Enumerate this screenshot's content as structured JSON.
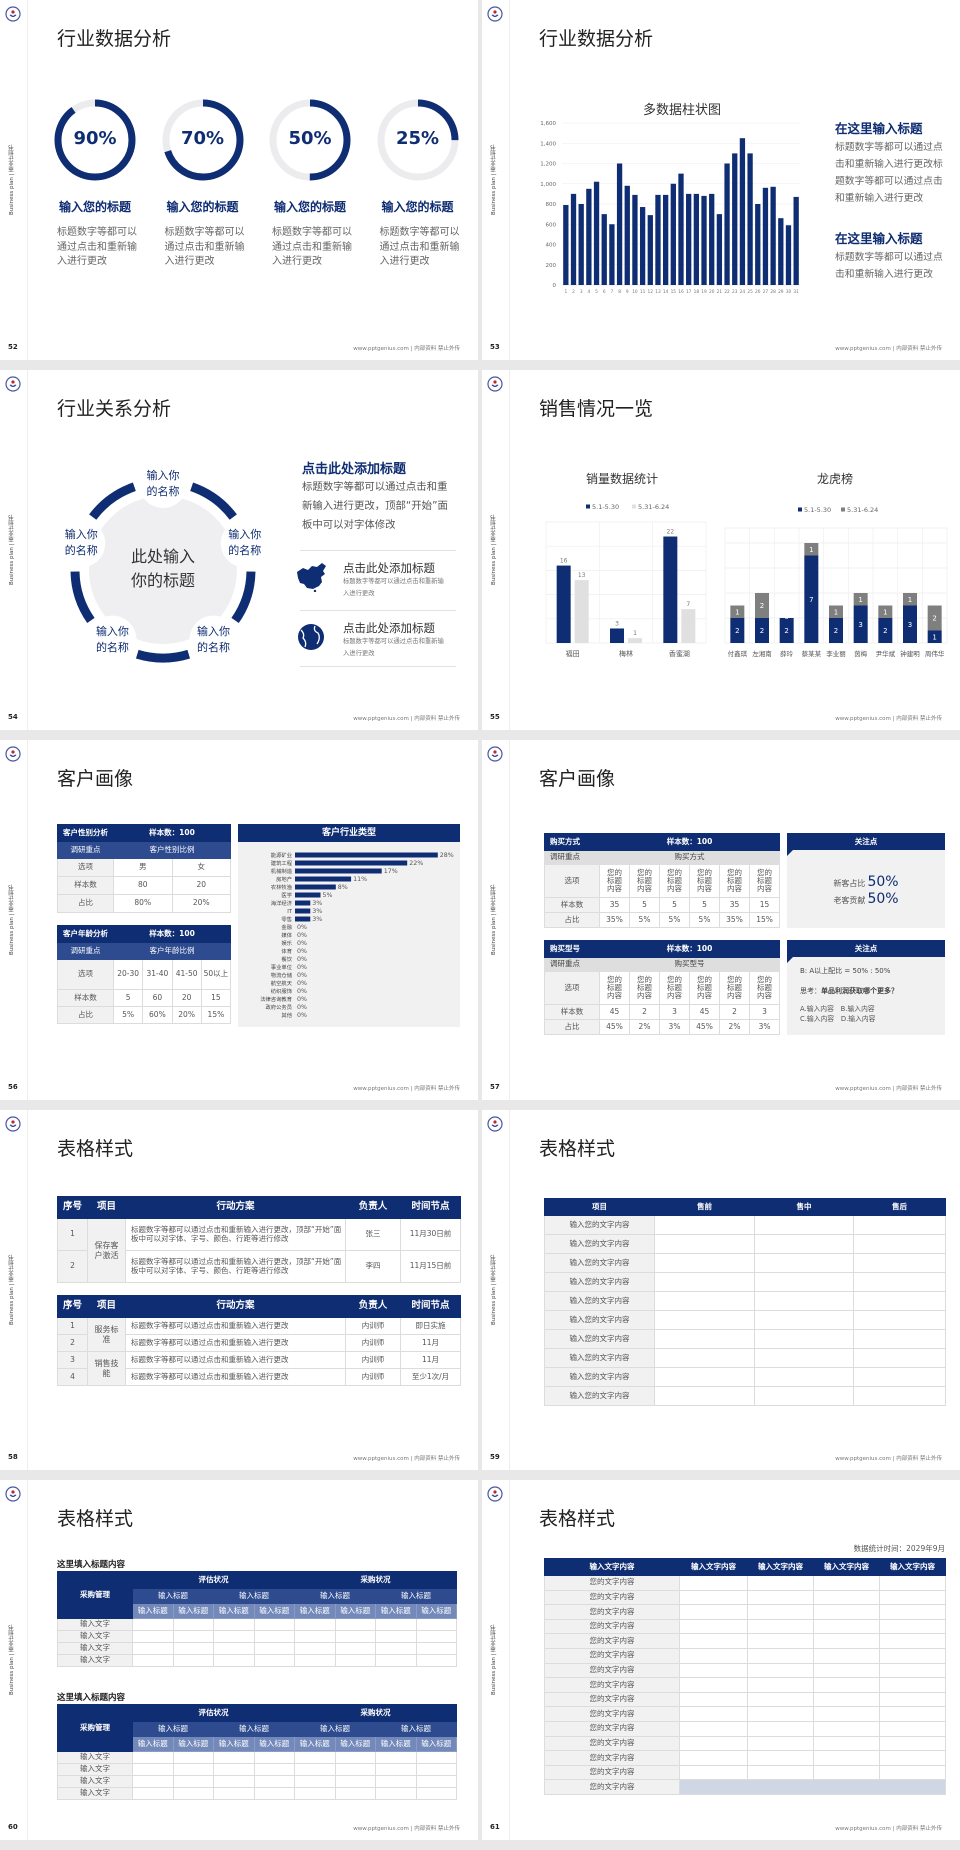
{
  "common": {
    "side_label": "Business plan | 商业计划书",
    "footer": "www.pptgenius.com | 内部资料 禁止外传",
    "accent": "#0f2d72",
    "logo_icon": "emblem-logo"
  },
  "slides": [
    {
      "page": "52",
      "title": "行业数据分析",
      "gauges": [
        {
          "value": 90,
          "label": "90%",
          "heading": "输入您的标题",
          "desc": "标题数字等都可以通过点击和重新输入进行更改"
        },
        {
          "value": 70,
          "label": "70%",
          "heading": "输入您的标题",
          "desc": "标题数字等都可以通过点击和重新输入进行更改"
        },
        {
          "value": 50,
          "label": "50%",
          "heading": "输入您的标题",
          "desc": "标题数字等都可以通过点击和重新输入进行更改"
        },
        {
          "value": 25,
          "label": "25%",
          "heading": "输入您的标题",
          "desc": "标题数字等都可以通过点击和重新输入进行更改"
        }
      ]
    },
    {
      "page": "53",
      "title": "行业数据分析",
      "blocks": [
        {
          "heading": "在这里输入标题",
          "body": "标题数字等都可以通过点击和重新输入进行更改标题数字等都可以通过点击和重新输入进行更改"
        },
        {
          "heading": "在这里输入标题",
          "body": "标题数字等都可以通过点击和重新输入进行更改"
        }
      ]
    },
    {
      "page": "54",
      "title": "行业关系分析",
      "center": "此处输入你的标题",
      "nodes": [
        "输入你的名称",
        "输入你的名称",
        "输入你的名称",
        "输入你的名称",
        "输入你的名称"
      ],
      "heading": "点击此处添加标题",
      "body": "标题数字等都可以通过点击和重新输入进行更改，顶部“开始”面板中可以对字体修改",
      "items": [
        {
          "icon": "china-map-icon",
          "title": "点击此处添加标题",
          "desc": "标题数字等都可以通过点击和重新输入进行更改"
        },
        {
          "icon": "globe-icon",
          "title": "点击此处添加标题",
          "desc": "标题数字等都可以通过点击和重新输入进行更改"
        }
      ]
    },
    {
      "page": "55",
      "title": "销售情况一览"
    },
    {
      "page": "56",
      "title": "客户画像",
      "gender": {
        "title": "客户性别分析",
        "sample": "样本数：100",
        "focus_label": "调研重点",
        "focus_value": "客户性别比例",
        "rows": [
          [
            "选项",
            "男",
            "女"
          ],
          [
            "样本数",
            "80",
            "20"
          ],
          [
            "占比",
            "80%",
            "20%"
          ]
        ]
      },
      "age": {
        "title": "客户年龄分析",
        "sample": "样本数：100",
        "focus_label": "调研重点",
        "focus_value": "客户年龄比例",
        "rows": [
          [
            "选项",
            "20-30",
            "31-40",
            "41-50",
            "50以上"
          ],
          [
            "样本数",
            "5",
            "60",
            "20",
            "15"
          ],
          [
            "占比",
            "5%",
            "60%",
            "20%",
            "15%"
          ]
        ]
      },
      "industry_title": "客户行业类型"
    },
    {
      "page": "57",
      "title": "客户画像",
      "tables": [
        {
          "title": "购买方式",
          "sample": "样本数：100",
          "focus_label": "调研重点",
          "focus_value": "购买方式",
          "options_label": "选项",
          "options": [
            "您的标题内容",
            "您的标题内容",
            "您的标题内容",
            "您的标题内容",
            "您的标题内容",
            "您的标题内容"
          ],
          "rows": [
            {
              "label": "样本数",
              "values": [
                "35",
                "5",
                "5",
                "5",
                "35",
                "15"
              ]
            },
            {
              "label": "占比",
              "values": [
                "35%",
                "5%",
                "5%",
                "5%",
                "35%",
                "15%"
              ]
            }
          ]
        },
        {
          "title": "购买型号",
          "sample": "样本数：100",
          "focus_label": "调研重点",
          "focus_value": "购买型号",
          "options_label": "选项",
          "options": [
            "您的标题内容",
            "您的标题内容",
            "您的标题内容",
            "您的标题内容",
            "您的标题内容",
            "您的标题内容"
          ],
          "rows": [
            {
              "label": "样本数",
              "values": [
                "45",
                "2",
                "3",
                "45",
                "2",
                "3"
              ]
            },
            {
              "label": "占比",
              "values": [
                "45%",
                "2%",
                "3%",
                "45%",
                "2%",
                "3%"
              ]
            }
          ]
        }
      ],
      "panels": [
        {
          "title": "关注点",
          "stats": [
            {
              "label": "新客占比",
              "value": "50%"
            },
            {
              "label": "老客贡献",
              "value": "50%"
            }
          ]
        },
        {
          "title": "关注点",
          "ratio": "B: A以上配比 = 50% : 50%",
          "question_prefix": "思考：",
          "question": "单品利润获取哪个更多？",
          "options": [
            "A.输入内容　B.输入内容",
            "C.输入内容　D.输入内容"
          ]
        }
      ]
    },
    {
      "page": "58",
      "title": "表格样式",
      "headers": [
        "序号",
        "项目",
        "行动方案",
        "负责人",
        "时间节点"
      ],
      "table1": [
        {
          "item": "保存客户激活",
          "rows": [
            {
              "no": "1",
              "plan": "标题数字等都可以通过点击和重新输入进行更改，顶部“开始”面板中可以对字体、字号、颜色、行距等进行修改",
              "owner": "张三",
              "time": "11月30日前"
            },
            {
              "no": "2",
              "plan": "标题数字等都可以通过点击和重新输入进行更改，顶部“开始”面板中可以对字体、字号、颜色、行距等进行修改",
              "owner": "李四",
              "time": "11月15日前"
            }
          ]
        }
      ],
      "table2": [
        {
          "item": "服务标准",
          "rows": [
            {
              "no": "1",
              "plan": "标题数字等都可以通过点击和重新输入进行更改",
              "owner": "内训师",
              "time": "即日实施"
            },
            {
              "no": "2",
              "plan": "标题数字等都可以通过点击和重新输入进行更改",
              "owner": "内训师",
              "time": "11月"
            }
          ]
        },
        {
          "item": "销售技能",
          "rows": [
            {
              "no": "3",
              "plan": "标题数字等都可以通过点击和重新输入进行更改",
              "owner": "内训师",
              "time": "11月"
            },
            {
              "no": "4",
              "plan": "标题数字等都可以通过点击和重新输入进行更改",
              "owner": "内训师",
              "time": "至少1次/月"
            }
          ]
        }
      ]
    },
    {
      "page": "59",
      "title": "表格样式",
      "headers": [
        "项目",
        "售前",
        "售中",
        "售后"
      ],
      "rows": [
        "输入您的文字内容",
        "输入您的文字内容",
        "输入您的文字内容",
        "输入您的文字内容",
        "输入您的文字内容",
        "输入您的文字内容",
        "输入您的文字内容",
        "输入您的文字内容",
        "输入您的文字内容",
        "输入您的文字内容"
      ]
    },
    {
      "page": "60",
      "title": "表格样式",
      "blocks": [
        {
          "subtitle": "这里填入标题内容",
          "corner": "采购管理",
          "groups": [
            "评估状况",
            "采购状况"
          ],
          "subgroups": [
            "输入标题",
            "输入标题",
            "输入标题",
            "输入标题"
          ],
          "columns": [
            "输入标题",
            "输入标题",
            "输入标题",
            "输入标题",
            "输入标题",
            "输入标题",
            "输入标题",
            "输入标题"
          ],
          "rows": [
            "输入文字",
            "输入文字",
            "输入文字",
            "输入文字"
          ]
        },
        {
          "subtitle": "这里填入标题内容",
          "corner": "采购管理",
          "groups": [
            "评估状况",
            "采购状况"
          ],
          "subgroups": [
            "输入标题",
            "输入标题",
            "输入标题",
            "输入标题"
          ],
          "columns": [
            "输入标题",
            "输入标题",
            "输入标题",
            "输入标题",
            "输入标题",
            "输入标题",
            "输入标题",
            "输入标题"
          ],
          "rows": [
            "输入文字",
            "输入文字",
            "输入文字",
            "输入文字"
          ]
        }
      ]
    },
    {
      "page": "61",
      "title": "表格样式",
      "note": "数据统计时间：2029年9月",
      "headers": [
        "输入文字内容",
        "输入文字内容",
        "输入文字内容",
        "输入文字内容",
        "输入文字内容"
      ],
      "rows": [
        "您的文字内容",
        "您的文字内容",
        "您的文字内容",
        "您的文字内容",
        "您的文字内容",
        "您的文字内容",
        "您的文字内容",
        "您的文字内容",
        "您的文字内容",
        "您的文字内容",
        "您的文字内容",
        "您的文字内容",
        "您的文字内容",
        "您的文字内容",
        "您的文字内容"
      ]
    }
  ],
  "chart_data": [
    {
      "type": "bar",
      "title": "多数据柱状图",
      "categories": [
        "1",
        "2",
        "3",
        "4",
        "5",
        "6",
        "7",
        "8",
        "9",
        "10",
        "11",
        "12",
        "13",
        "14",
        "15",
        "16",
        "17",
        "18",
        "19",
        "20",
        "21",
        "22",
        "23",
        "24",
        "25",
        "26",
        "27",
        "28",
        "29",
        "30",
        "31"
      ],
      "values": [
        790,
        900,
        800,
        950,
        1020,
        700,
        600,
        1200,
        980,
        890,
        770,
        690,
        890,
        890,
        1000,
        1100,
        900,
        900,
        880,
        900,
        700,
        1200,
        1300,
        1450,
        1300,
        800,
        960,
        970,
        660,
        590,
        870
      ],
      "ylim": [
        0,
        1600
      ],
      "y_tick_labels": [
        "0",
        "200",
        "400",
        "600",
        "800",
        "1,000",
        "1,200",
        "1,400",
        "1,600"
      ],
      "grid": true,
      "color": "#0f2d72"
    },
    {
      "type": "bar",
      "title": "销量数据统计",
      "categories": [
        "福田",
        "梅林",
        "香蜜湖"
      ],
      "series": [
        {
          "name": "5.1-5.30",
          "values": [
            16,
            3,
            22
          ],
          "color": "#0f2d72"
        },
        {
          "name": "5.31-6.24",
          "values": [
            13,
            1,
            7
          ],
          "color": "#e0e0e0"
        }
      ],
      "ylim": [
        0,
        25
      ],
      "legend": "top",
      "grid": true,
      "data_labels": true
    },
    {
      "type": "bar",
      "stacked": true,
      "title": "龙虎榜",
      "categories": [
        "付鑫琪",
        "左湘南",
        "薛玲",
        "蔡某某",
        "李业丽",
        "茵梅",
        "尹华斌",
        "钟建明",
        "周伟华"
      ],
      "series": [
        {
          "name": "5.1-5.30",
          "values": [
            2,
            2,
            2,
            7,
            2,
            3,
            2,
            3,
            1
          ],
          "color": "#0f2d72"
        },
        {
          "name": "5.31-6.24",
          "values": [
            1,
            2,
            0,
            1,
            1,
            1,
            1,
            1,
            2
          ],
          "color": "#7f7f7f"
        }
      ],
      "ylim": [
        0,
        9
      ],
      "legend": "top",
      "grid": true,
      "data_labels": true
    },
    {
      "type": "bar",
      "orientation": "horizontal",
      "title": "客户行业类型",
      "categories": [
        "能源矿业",
        "建筑工程",
        "机械制造",
        "房地产",
        "农林牧渔",
        "医学",
        "海洋经济",
        "IT",
        "零售",
        "金融",
        "媒体",
        "娱乐",
        "体育",
        "餐饮",
        "事业单位",
        "物流仓储",
        "航空航天",
        "纺织服饰",
        "法律咨询教育",
        "政府公务员",
        "其他"
      ],
      "values": [
        28,
        22,
        17,
        11,
        8,
        5,
        3,
        3,
        3,
        0,
        0,
        0,
        0,
        0,
        0,
        0,
        0,
        0,
        0,
        0,
        0
      ],
      "unit": "%",
      "data_labels": true,
      "color": "#0f2d72"
    }
  ]
}
